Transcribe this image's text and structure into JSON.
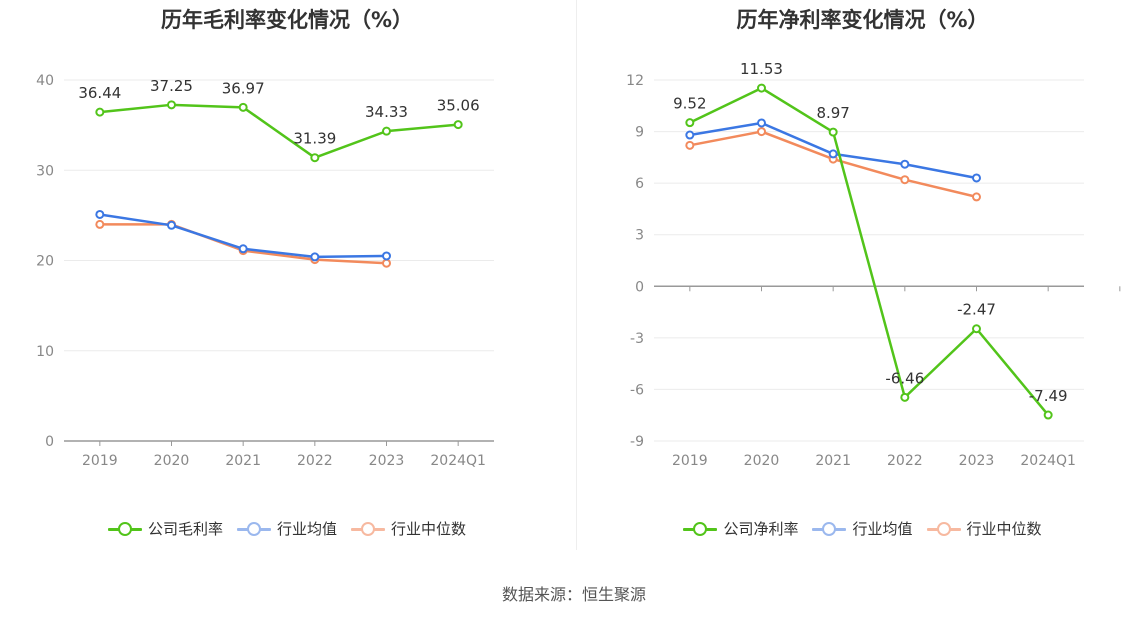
{
  "colors": {
    "company": "#52c41a",
    "avg": "#3b77e3",
    "median": "#f28a5c",
    "grid": "#ebebeb",
    "axis": "#999999"
  },
  "legend": {
    "company_gross": "公司毛利率",
    "company_net": "公司净利率",
    "avg": "行业均值",
    "median": "行业中位数"
  },
  "source": "数据来源：恒生聚源",
  "chart_data": [
    {
      "type": "line",
      "title": "历年毛利率变化情况（%）",
      "categories": [
        "2019",
        "2020",
        "2021",
        "2022",
        "2023",
        "2024Q1"
      ],
      "ylim": [
        0,
        40
      ],
      "yticks": [
        0,
        10,
        20,
        30,
        40
      ],
      "grid": true,
      "legend_position": "bottom",
      "series": [
        {
          "name": "公司毛利率",
          "values": [
            36.44,
            37.25,
            36.97,
            31.39,
            34.33,
            35.06
          ],
          "labels": [
            "36.44",
            "37.25",
            "36.97",
            "31.39",
            "34.33",
            "35.06"
          ]
        },
        {
          "name": "行业均值",
          "values": [
            25.1,
            23.9,
            21.3,
            20.4,
            20.5,
            null
          ]
        },
        {
          "name": "行业中位数",
          "values": [
            24.0,
            24.0,
            21.1,
            20.1,
            19.7,
            null
          ]
        }
      ]
    },
    {
      "type": "line",
      "title": "历年净利率变化情况（%）",
      "categories": [
        "2019",
        "2020",
        "2021",
        "2022",
        "2023",
        "2024Q1"
      ],
      "ylim": [
        -9,
        12
      ],
      "yticks": [
        -9,
        -6,
        -3,
        0,
        3,
        6,
        9,
        12
      ],
      "grid": true,
      "legend_position": "bottom",
      "series": [
        {
          "name": "公司净利率",
          "values": [
            9.52,
            11.53,
            8.97,
            -6.46,
            -2.47,
            -7.49
          ],
          "labels": [
            "9.52",
            "11.53",
            "8.97",
            "-6.46",
            "-2.47",
            "-7.49"
          ]
        },
        {
          "name": "行业均值",
          "values": [
            8.8,
            9.5,
            7.7,
            7.1,
            6.3,
            null
          ]
        },
        {
          "name": "行业中位数",
          "values": [
            8.2,
            9.0,
            7.4,
            6.2,
            5.2,
            null
          ]
        }
      ]
    }
  ]
}
